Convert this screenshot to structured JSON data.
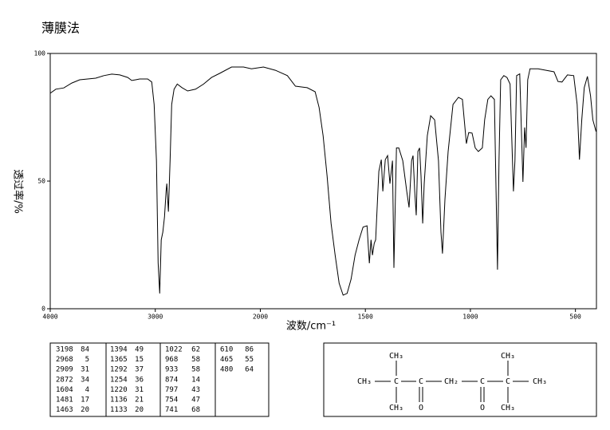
{
  "title": "薄膜法",
  "chart_data": {
    "type": "line",
    "xlabel": "波数/cm⁻¹",
    "ylabel": "透过率/%",
    "xlim": [
      4000,
      400
    ],
    "xticks": [
      4000,
      3000,
      2000,
      1500,
      1000,
      500
    ],
    "ylim": [
      0,
      100
    ],
    "yticks": [
      0,
      50,
      100
    ],
    "series": [
      {
        "color": "#000000",
        "x": [
          4000,
          3947,
          3871,
          3795,
          3719,
          3643,
          3567,
          3490,
          3414,
          3338,
          3262,
          3224,
          3186,
          3148,
          3072,
          3034,
          3011,
          2989,
          2973,
          2958,
          2943,
          2928,
          2912,
          2897,
          2890,
          2875,
          2859,
          2844,
          2821,
          2791,
          2745,
          2692,
          2616,
          2540,
          2464,
          2388,
          2274,
          2160,
          2084,
          1985,
          1928,
          1871,
          1833,
          1777,
          1739,
          1720,
          1701,
          1682,
          1663,
          1644,
          1625,
          1606,
          1587,
          1568,
          1549,
          1530,
          1511,
          1492,
          1481,
          1473,
          1466,
          1458,
          1451,
          1436,
          1424,
          1417,
          1405,
          1394,
          1383,
          1371,
          1364,
          1352,
          1341,
          1322,
          1303,
          1292,
          1280,
          1273,
          1265,
          1258,
          1250,
          1242,
          1235,
          1227,
          1220,
          1205,
          1189,
          1170,
          1152,
          1140,
          1133,
          1121,
          1106,
          1083,
          1057,
          1038,
          1019,
          1008,
          992,
          977,
          962,
          943,
          932,
          917,
          902,
          886,
          871,
          864,
          856,
          841,
          826,
          811,
          795,
          788,
          780,
          765,
          750,
          742,
          735,
          727,
          716,
          678,
          640,
          602,
          583,
          564,
          538,
          508,
          492,
          481,
          470,
          458,
          443,
          428,
          417,
          402
        ],
        "values": [
          84.4,
          86,
          86.5,
          88.4,
          89.7,
          90,
          90.3,
          91.3,
          91.9,
          91.6,
          90.6,
          89.4,
          89.7,
          90,
          90,
          88.8,
          80,
          58,
          18,
          6,
          27,
          30,
          36,
          46,
          49,
          38,
          58,
          80,
          86,
          88,
          86.6,
          85.3,
          86,
          88,
          90.6,
          92.2,
          94.7,
          94.7,
          94,
          94.7,
          93.4,
          91.3,
          87.2,
          86.6,
          85,
          78.8,
          67.8,
          52,
          33.4,
          21,
          10,
          5.3,
          6,
          11.6,
          21,
          27,
          32,
          32.5,
          17.8,
          27,
          21,
          25.6,
          27,
          53.8,
          58.4,
          46,
          58.4,
          60,
          49,
          58,
          16,
          63,
          63,
          58,
          46,
          39.7,
          58,
          60,
          46,
          36.6,
          61.6,
          63,
          52,
          33.4,
          49,
          67.8,
          75.6,
          74,
          58,
          30,
          21.6,
          42.8,
          61.6,
          80,
          82.8,
          82,
          64.7,
          69,
          68.8,
          63,
          61.6,
          63,
          74,
          82,
          83.4,
          82,
          15.3,
          58,
          89.7,
          91.3,
          90.6,
          88,
          46,
          58,
          91.3,
          92,
          49.7,
          71,
          63,
          89.7,
          94,
          94,
          93.4,
          92.8,
          89,
          88.8,
          91.6,
          91.3,
          80,
          58.4,
          74,
          86.6,
          91,
          83.4,
          74,
          69.4
        ]
      }
    ]
  },
  "peak_table": {
    "columns": [
      [
        [
          3198,
          84
        ],
        [
          2968,
          5
        ],
        [
          2909,
          31
        ],
        [
          2872,
          34
        ],
        [
          1604,
          4
        ],
        [
          1481,
          17
        ],
        [
          1463,
          20
        ]
      ],
      [
        [
          1394,
          49
        ],
        [
          1365,
          15
        ],
        [
          1292,
          37
        ],
        [
          1254,
          36
        ],
        [
          1220,
          31
        ],
        [
          1136,
          21
        ],
        [
          1133,
          20
        ]
      ],
      [
        [
          1022,
          62
        ],
        [
          968,
          58
        ],
        [
          933,
          58
        ],
        [
          874,
          14
        ],
        [
          797,
          43
        ],
        [
          754,
          47
        ],
        [
          741,
          68
        ]
      ],
      [
        [
          610,
          86
        ],
        [
          465,
          55
        ],
        [
          480,
          64
        ]
      ]
    ]
  },
  "structure": {
    "atoms": [
      "CH₃",
      "CH₃",
      "CH₃",
      "C",
      "C",
      "CH₂",
      "C",
      "C",
      "CH₃",
      "CH₃",
      "O",
      "O",
      "CH₃"
    ]
  }
}
